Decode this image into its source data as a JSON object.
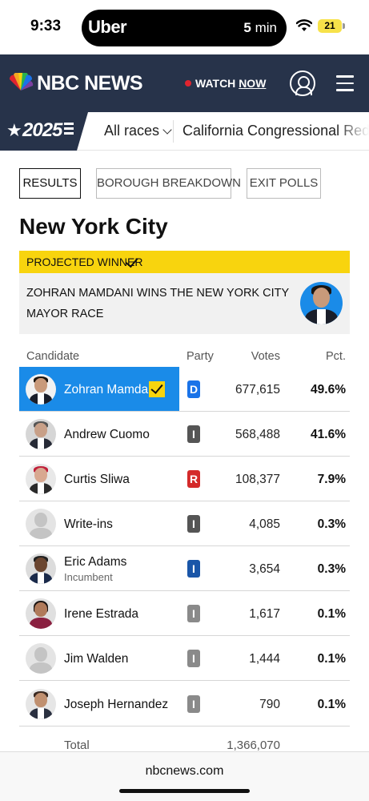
{
  "status_bar": {
    "time": "9:33",
    "island_app": "Uber",
    "eta_number": "5",
    "eta_unit": "min",
    "battery": "21"
  },
  "header": {
    "logo_text": "NBC NEWS",
    "watch_label": "WATCH",
    "now_label": "NOW"
  },
  "election_nav": {
    "year": "2025",
    "all_races_label": "All races",
    "second_item": "California Congressional Redistricting"
  },
  "tabs": [
    {
      "label": "RESULTS",
      "active": true
    },
    {
      "label": "BOROUGH BREAKDOWN",
      "active": false
    },
    {
      "label": "EXIT POLLS",
      "active": false
    }
  ],
  "race": {
    "title": "New York City",
    "projected_label": "PROJECTED WINNER",
    "winner_headline": "ZOHRAN MAMDANI WINS THE NEW YORK CITY MAYOR RACE"
  },
  "table": {
    "headers": {
      "candidate": "Candidate",
      "party": "Party",
      "votes": "Votes",
      "pct": "Pct."
    },
    "rows": [
      {
        "name": "Zohran Mamdani",
        "sub": "",
        "party": "D",
        "party_color": "#1a73e8",
        "votes": "677,615",
        "pct": "49.6%",
        "winner": true
      },
      {
        "name": "Andrew Cuomo",
        "sub": "",
        "party": "I",
        "party_color": "#555555",
        "votes": "568,488",
        "pct": "41.6%",
        "winner": false
      },
      {
        "name": "Curtis Sliwa",
        "sub": "",
        "party": "R",
        "party_color": "#d42a2a",
        "votes": "108,377",
        "pct": "7.9%",
        "winner": false
      },
      {
        "name": "Write-ins",
        "sub": "",
        "party": "I",
        "party_color": "#555555",
        "votes": "4,085",
        "pct": "0.3%",
        "winner": false
      },
      {
        "name": "Eric Adams",
        "sub": "Incumbent",
        "party": "I",
        "party_color": "#1a56a8",
        "votes": "3,654",
        "pct": "0.3%",
        "winner": false
      },
      {
        "name": "Irene Estrada",
        "sub": "",
        "party": "I",
        "party_color": "#8a8a8a",
        "votes": "1,617",
        "pct": "0.1%",
        "winner": false
      },
      {
        "name": "Jim Walden",
        "sub": "",
        "party": "I",
        "party_color": "#8a8a8a",
        "votes": "1,444",
        "pct": "0.1%",
        "winner": false
      },
      {
        "name": "Joseph Hernandez",
        "sub": "",
        "party": "I",
        "party_color": "#8a8a8a",
        "votes": "790",
        "pct": "0.1%",
        "winner": false
      }
    ],
    "total_label": "Total",
    "total_votes": "1,366,070"
  },
  "url_bar": {
    "url": "nbcnews.com"
  },
  "colors": {
    "header_bg": "#27334a",
    "accent_yellow": "#f8d40e",
    "winner_blue": "#1a8be8"
  }
}
